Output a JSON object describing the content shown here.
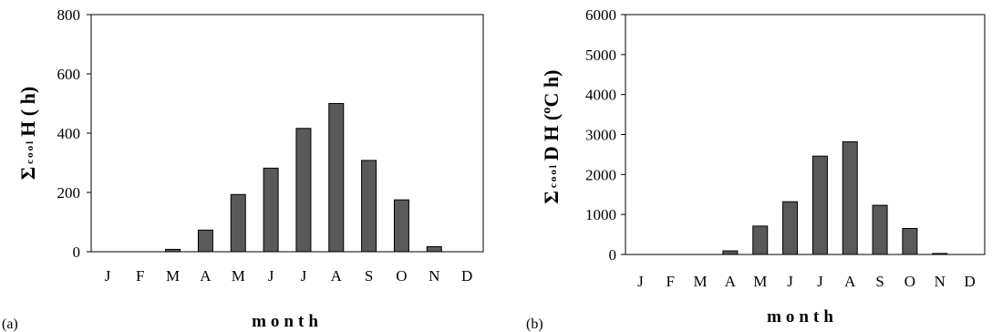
{
  "chart_data": [
    {
      "type": "bar",
      "panel_label": "(a)",
      "categories": [
        "J",
        "F",
        "M",
        "A",
        "M",
        "J",
        "J",
        "A",
        "S",
        "O",
        "N",
        "D"
      ],
      "values": [
        0,
        0,
        8,
        73,
        193,
        282,
        416,
        500,
        308,
        175,
        17,
        0
      ],
      "xlabel": "month",
      "ylabel": {
        "sigma": "Σ",
        "sub": "cool",
        "main": "H ( h)"
      },
      "ylim": [
        0,
        800
      ],
      "yticks": [
        0,
        200,
        400,
        600,
        800
      ],
      "bar_color": "#595959",
      "grid": false
    },
    {
      "type": "bar",
      "panel_label": "(b)",
      "categories": [
        "J",
        "F",
        "M",
        "A",
        "M",
        "J",
        "J",
        "A",
        "S",
        "O",
        "N",
        "D"
      ],
      "values": [
        0,
        0,
        0,
        90,
        710,
        1320,
        2460,
        2820,
        1230,
        650,
        25,
        0
      ],
      "xlabel": "month",
      "ylabel": {
        "sigma": "Σ",
        "sub": "cool",
        "main": "D H (ºC h)"
      },
      "ylim": [
        0,
        6000
      ],
      "yticks": [
        0,
        1000,
        2000,
        3000,
        4000,
        5000,
        6000
      ],
      "bar_color": "#595959",
      "grid": false
    }
  ]
}
